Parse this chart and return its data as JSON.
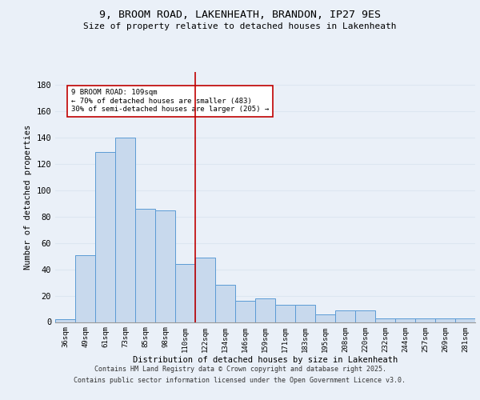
{
  "title1": "9, BROOM ROAD, LAKENHEATH, BRANDON, IP27 9ES",
  "title2": "Size of property relative to detached houses in Lakenheath",
  "xlabel": "Distribution of detached houses by size in Lakenheath",
  "ylabel": "Number of detached properties",
  "categories": [
    "36sqm",
    "49sqm",
    "61sqm",
    "73sqm",
    "85sqm",
    "98sqm",
    "110sqm",
    "122sqm",
    "134sqm",
    "146sqm",
    "159sqm",
    "171sqm",
    "183sqm",
    "195sqm",
    "208sqm",
    "220sqm",
    "232sqm",
    "244sqm",
    "257sqm",
    "269sqm",
    "281sqm"
  ],
  "values": [
    2,
    51,
    129,
    140,
    86,
    85,
    44,
    49,
    28,
    16,
    18,
    13,
    13,
    6,
    9,
    9,
    3,
    3,
    3,
    3,
    3
  ],
  "bar_color": "#c8d9ed",
  "bar_edge_color": "#5b9bd5",
  "grid_color": "#dce6f1",
  "vline_x": 6.5,
  "vline_color": "#c00000",
  "annotation_text": "9 BROOM ROAD: 109sqm\n← 70% of detached houses are smaller (483)\n30% of semi-detached houses are larger (205) →",
  "annotation_box_color": "#ffffff",
  "annotation_box_edge_color": "#c00000",
  "ylim": [
    0,
    190
  ],
  "yticks": [
    0,
    20,
    40,
    60,
    80,
    100,
    120,
    140,
    160,
    180
  ],
  "footer1": "Contains HM Land Registry data © Crown copyright and database right 2025.",
  "footer2": "Contains public sector information licensed under the Open Government Licence v3.0.",
  "bg_color": "#eaf0f8"
}
